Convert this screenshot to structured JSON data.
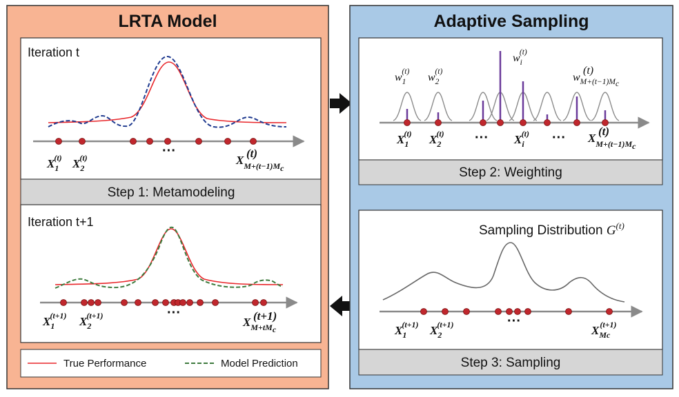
{
  "left_panel": {
    "title": "LRTA Model",
    "iteration_top": "Iteration t",
    "iteration_bottom": "Iteration t+1",
    "step1_label": "Step 1: Metamodeling",
    "top_labels": {
      "x1": "X",
      "x1_sub": "1",
      "x1_sup": "(t)",
      "x2": "X",
      "x2_sub": "2",
      "x2_sup": "(t)",
      "xn": "X",
      "xn_sub": "M+(t−1)M",
      "xn_subsub": "c",
      "xn_sup": "(t)",
      "ellipsis": "···"
    },
    "bottom_labels": {
      "x1": "X",
      "x1_sub": "1",
      "x1_sup": "(t+1)",
      "x2": "X",
      "x2_sub": "2",
      "x2_sup": "(t+1)",
      "xn": "X",
      "xn_sub": "M+tM",
      "xn_subsub": "c",
      "xn_sup": "(t+1)",
      "ellipsis": "···"
    },
    "legend": {
      "true_label": "True Performance",
      "model_label": "Model Prediction"
    }
  },
  "right_panel": {
    "title": "Adaptive Sampling",
    "step2_label": "Step 2: Weighting",
    "step3_label": "Step 3: Sampling",
    "weights": {
      "w1": "w",
      "w1_sub": "1",
      "w1_sup": "(t)",
      "w2": "w",
      "w2_sub": "2",
      "w2_sup": "(t)",
      "wi": "w",
      "wi_sub": "i",
      "wi_sup": "(t)",
      "wn": "w",
      "wn_sub": "M+(t−1)M",
      "wn_subsub": "c",
      "wn_sup": "(t)"
    },
    "weight_labels": {
      "x1": "X",
      "x1_sub": "1",
      "x1_sup": "(t)",
      "x2": "X",
      "x2_sub": "2",
      "x2_sup": "(t)",
      "xi": "X",
      "xi_sub": "i",
      "xi_sup": "(t)",
      "xn": "X",
      "xn_sub": "M+(t−1)M",
      "xn_subsub": "c",
      "xn_sup": "(t)",
      "ellipsis1": "···",
      "ellipsis2": "···"
    },
    "sampling_title": "Sampling Distribution ",
    "sampling_g": "G",
    "sampling_sup": "(t)",
    "sample_labels": {
      "x1": "X",
      "x1_sub": "1",
      "x1_sup": "(t+1)",
      "x2": "X",
      "x2_sub": "2",
      "x2_sup": "(t+1)",
      "xn": "X",
      "xn_sub": "Mc",
      "xn_sup": "(t+1)",
      "ellipsis": "···"
    }
  },
  "colors": {
    "left_bg": "#f8b493",
    "right_bg": "#a9c9e6",
    "step_bar": "#d6d6d6",
    "true_curve": "#e8262a",
    "model_blue": "#1f3a8f",
    "model_green": "#3d7a3d",
    "point_fill": "#c0272d",
    "weight_bar": "#6a3a9a",
    "kernel": "#8a8a8a",
    "axis": "#8a8a8a"
  }
}
